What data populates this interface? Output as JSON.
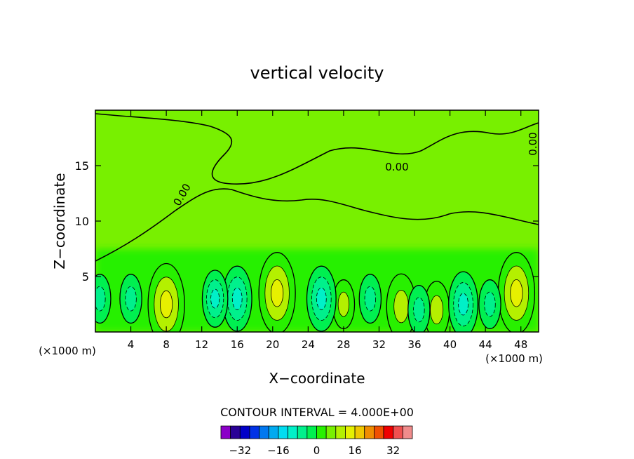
{
  "chart_data": {
    "type": "heatmap",
    "title": "vertical velocity",
    "xlabel": "X−coordinate",
    "ylabel": "Z−coordinate",
    "x_unit_left": "(×1000 m)",
    "x_unit_right": "(×1000 m)",
    "xlim": [
      0,
      50
    ],
    "ylim": [
      0,
      20
    ],
    "x_ticks": [
      4,
      8,
      12,
      16,
      20,
      24,
      28,
      32,
      36,
      40,
      44,
      48
    ],
    "y_ticks": [
      5,
      10,
      15
    ],
    "contour_label": "0.00",
    "contour_interval_text": "CONTOUR INTERVAL = 4.000E+00",
    "colorbar": {
      "colors": [
        "#8b00c8",
        "#2a0096",
        "#0000c8",
        "#0032e6",
        "#0078f0",
        "#00aaf0",
        "#00dcf0",
        "#00f0c8",
        "#00f08c",
        "#00f050",
        "#28f000",
        "#78f000",
        "#b4f000",
        "#e6f000",
        "#f0c800",
        "#f08c00",
        "#f05000",
        "#f00000",
        "#f05050",
        "#f08c8c"
      ],
      "tick_labels": [
        "−32",
        "−16",
        "0",
        "16",
        "32"
      ],
      "tick_values": [
        -32,
        -16,
        0,
        16,
        32
      ],
      "min": -40,
      "max": 40,
      "step": 4
    },
    "cells": [
      {
        "x": 8,
        "z": 2.5,
        "w": 1
      },
      {
        "x": 20.5,
        "z": 3.5,
        "w": 1
      },
      {
        "x": 47.5,
        "z": 3.5,
        "w": 1
      },
      {
        "x": 34.5,
        "z": 2.3,
        "w": 0.8
      },
      {
        "x": 38.5,
        "z": 2,
        "w": 0.7
      },
      {
        "x": 28,
        "z": 2.5,
        "w": 0.6
      },
      {
        "x": 16,
        "z": 3,
        "w": -0.8
      },
      {
        "x": 25.5,
        "z": 3,
        "w": -0.8
      },
      {
        "x": 41.5,
        "z": 2.5,
        "w": -0.8
      },
      {
        "x": 36.5,
        "z": 2,
        "w": -0.6
      },
      {
        "x": 13.5,
        "z": 3,
        "w": -0.7
      },
      {
        "x": 4,
        "z": 3,
        "w": -0.5
      },
      {
        "x": 0.5,
        "z": 3,
        "w": -0.5
      },
      {
        "x": 31,
        "z": 3,
        "w": -0.6
      },
      {
        "x": 44.5,
        "z": 2.5,
        "w": -0.5
      }
    ]
  }
}
